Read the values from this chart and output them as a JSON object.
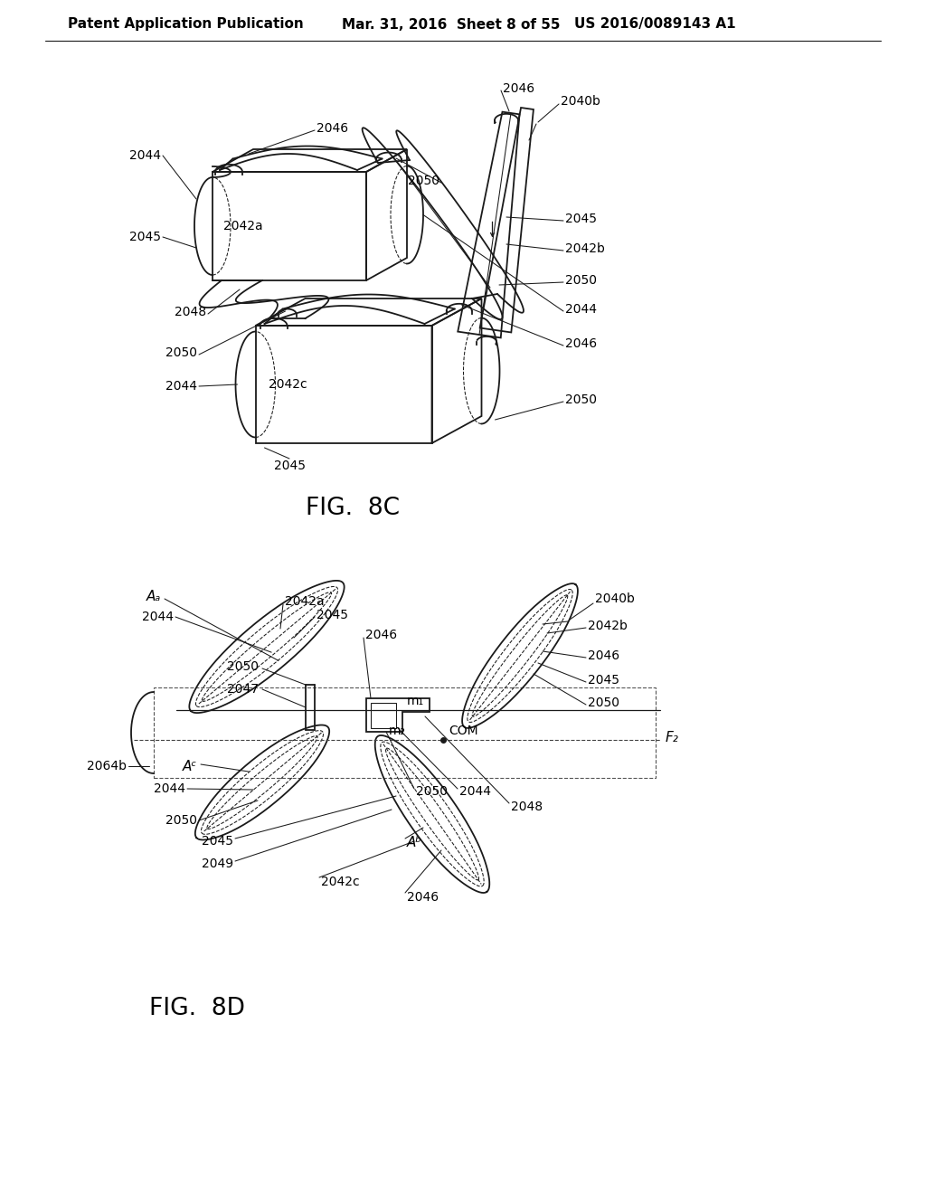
{
  "background_color": "#ffffff",
  "header_text": "Patent Application Publication",
  "header_date": "Mar. 31, 2016  Sheet 8 of 55",
  "header_patent": "US 2016/0089143 A1",
  "fig_label_8c": "FIG.  8C",
  "fig_label_8d": "FIG.  8D",
  "line_color": "#1a1a1a",
  "text_color": "#000000",
  "header_font_size": 11,
  "label_font_size": 10,
  "fig_label_font_size": 19
}
